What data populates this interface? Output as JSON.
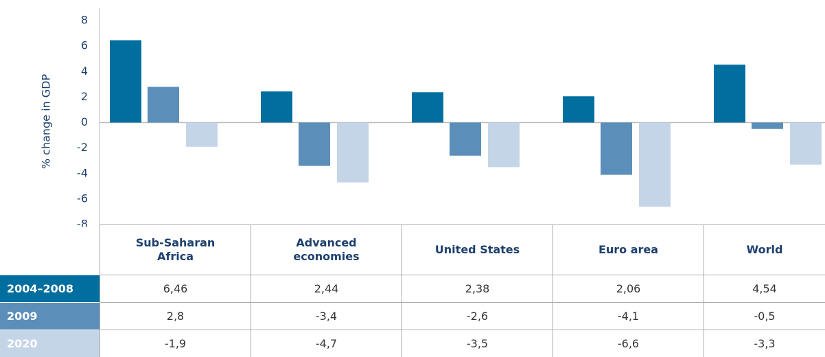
{
  "chart_data": {
    "type": "bar",
    "y_label": "% change in GDP",
    "categories": [
      "Sub-Saharan Africa",
      "Advanced economies",
      "United States",
      "Euro area",
      "World"
    ],
    "series": [
      {
        "name": "2004–2008",
        "color": "#006e9f",
        "values": [
          6.46,
          2.44,
          2.38,
          2.06,
          4.54
        ],
        "value_labels": [
          "6,46",
          "2,44",
          "2,38",
          "2,06",
          "4,54"
        ]
      },
      {
        "name": "2009",
        "color": "#5b8fba",
        "values": [
          2.8,
          -3.4,
          -2.6,
          -4.1,
          -0.5
        ],
        "value_labels": [
          "2,8",
          "-3,4",
          "-2,6",
          "-4,1",
          "-0,5"
        ]
      },
      {
        "name": "2020",
        "color": "#c5d5e8",
        "values": [
          -1.9,
          -4.7,
          -3.5,
          -6.6,
          -3.3
        ],
        "value_labels": [
          "-1,9",
          "-4,7",
          "-3,5",
          "-6,6",
          "-3,3"
        ]
      }
    ],
    "ylim": [
      -8,
      8
    ],
    "yticks": [
      -8,
      -6,
      -4,
      -2,
      0,
      2,
      4,
      6,
      8
    ]
  }
}
